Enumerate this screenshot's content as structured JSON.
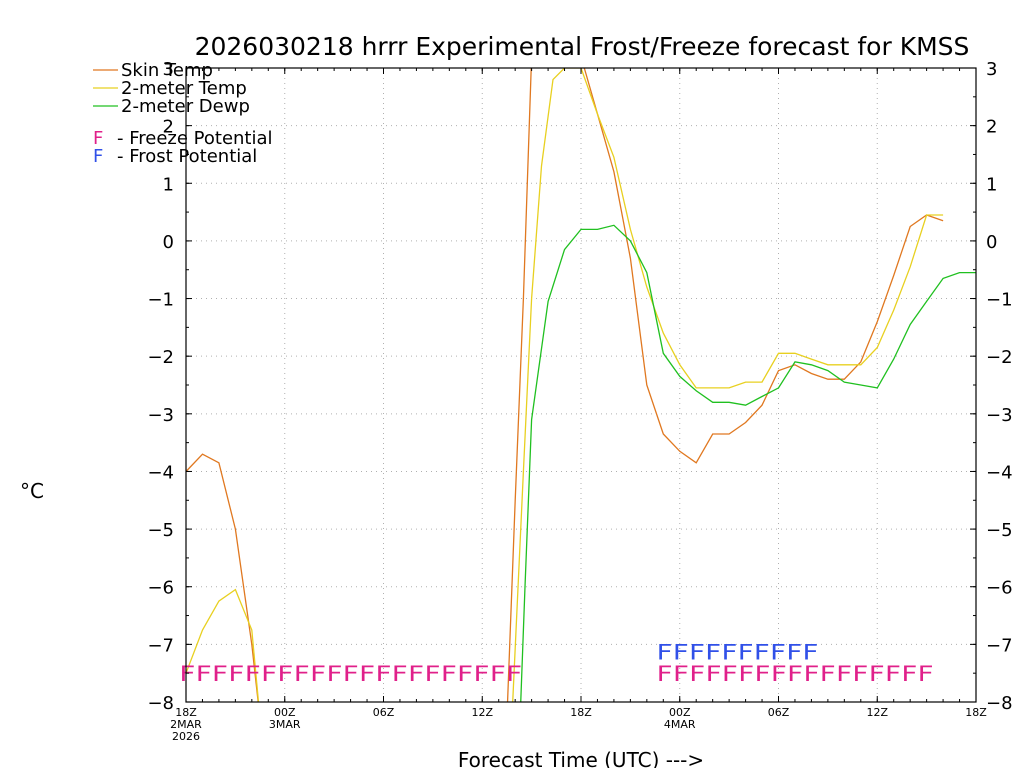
{
  "chart_data": {
    "type": "line",
    "title": "2026030218 hrrr Experimental Frost/Freeze forecast for KMSS",
    "ylabel": "°C",
    "xlabel": "Forecast Time (UTC) --->",
    "ylim": [
      -8,
      3
    ],
    "yticks": [
      3,
      2,
      1,
      0,
      -1,
      -2,
      -3,
      -4,
      -5,
      -6,
      -7,
      -8
    ],
    "xlim": [
      0,
      48
    ],
    "xticks": [
      {
        "h": 0,
        "lines": [
          "18Z",
          "2MAR",
          "2026"
        ]
      },
      {
        "h": 6,
        "lines": [
          "00Z",
          "3MAR"
        ]
      },
      {
        "h": 12,
        "lines": [
          "06Z"
        ]
      },
      {
        "h": 18,
        "lines": [
          "12Z"
        ]
      },
      {
        "h": 24,
        "lines": [
          "18Z"
        ]
      },
      {
        "h": 30,
        "lines": [
          "00Z",
          "4MAR"
        ]
      },
      {
        "h": 36,
        "lines": [
          "06Z"
        ]
      },
      {
        "h": 42,
        "lines": [
          "12Z"
        ]
      },
      {
        "h": 48,
        "lines": [
          "18Z"
        ]
      }
    ],
    "series": [
      {
        "name": "Skin Temp",
        "color": "#e07820",
        "points": [
          [
            0,
            -4.0
          ],
          [
            1,
            -3.7
          ],
          [
            2,
            -3.85
          ],
          [
            3,
            -5.0
          ],
          [
            4,
            -7.0
          ],
          [
            4.5,
            -8.3
          ],
          [
            19.5,
            -8.3
          ],
          [
            20,
            -4.5
          ],
          [
            20.5,
            -1.0
          ],
          [
            21,
            3.2
          ],
          [
            21.5,
            3.2
          ],
          [
            22,
            3.2
          ],
          [
            23,
            3.2
          ],
          [
            24,
            3.2
          ],
          [
            25,
            2.2
          ],
          [
            26,
            1.2
          ],
          [
            27,
            -0.3
          ],
          [
            28,
            -2.5
          ],
          [
            29,
            -3.35
          ],
          [
            30,
            -3.65
          ],
          [
            31,
            -3.85
          ],
          [
            32,
            -3.35
          ],
          [
            33,
            -3.35
          ],
          [
            34,
            -3.15
          ],
          [
            35,
            -2.85
          ],
          [
            36,
            -2.25
          ],
          [
            37,
            -2.15
          ],
          [
            38,
            -2.3
          ],
          [
            39,
            -2.4
          ],
          [
            40,
            -2.4
          ],
          [
            41,
            -2.1
          ],
          [
            42,
            -1.4
          ],
          [
            43,
            -0.6
          ],
          [
            44,
            0.25
          ],
          [
            45,
            0.45
          ],
          [
            46,
            0.35
          ]
        ]
      },
      {
        "name": "2-meter Temp",
        "color": "#e8d020",
        "points": [
          [
            0,
            -7.5
          ],
          [
            1,
            -6.75
          ],
          [
            2,
            -6.25
          ],
          [
            3,
            -6.05
          ],
          [
            4,
            -6.75
          ],
          [
            4.5,
            -8.3
          ],
          [
            19.8,
            -8.3
          ],
          [
            20.5,
            -4.0
          ],
          [
            21,
            -1.0
          ],
          [
            21.6,
            1.3
          ],
          [
            22.3,
            2.8
          ],
          [
            23,
            3.0
          ],
          [
            24,
            3.0
          ],
          [
            25,
            2.2
          ],
          [
            26,
            1.45
          ],
          [
            27,
            0.2
          ],
          [
            28,
            -0.8
          ],
          [
            29,
            -1.6
          ],
          [
            30,
            -2.15
          ],
          [
            31,
            -2.55
          ],
          [
            32,
            -2.55
          ],
          [
            33,
            -2.55
          ],
          [
            34,
            -2.45
          ],
          [
            35,
            -2.45
          ],
          [
            36,
            -1.95
          ],
          [
            37,
            -1.95
          ],
          [
            38,
            -2.05
          ],
          [
            39,
            -2.15
          ],
          [
            40,
            -2.15
          ],
          [
            41,
            -2.15
          ],
          [
            42,
            -1.85
          ],
          [
            43,
            -1.2
          ],
          [
            44,
            -0.45
          ],
          [
            45,
            0.45
          ],
          [
            46,
            0.45
          ]
        ]
      },
      {
        "name": "2-meter Dewp",
        "color": "#20c020",
        "points": [
          [
            20.3,
            -8.3
          ],
          [
            20.6,
            -6.0
          ],
          [
            21,
            -3.1
          ],
          [
            22,
            -1.05
          ],
          [
            23,
            -0.15
          ],
          [
            24,
            0.2
          ],
          [
            25,
            0.2
          ],
          [
            26,
            0.27
          ],
          [
            27,
            0.0
          ],
          [
            28,
            -0.55
          ],
          [
            29,
            -1.95
          ],
          [
            30,
            -2.35
          ],
          [
            31,
            -2.6
          ],
          [
            32,
            -2.8
          ],
          [
            33,
            -2.8
          ],
          [
            34,
            -2.85
          ],
          [
            35,
            -2.7
          ],
          [
            36,
            -2.55
          ],
          [
            37,
            -2.1
          ],
          [
            38,
            -2.15
          ],
          [
            39,
            -2.25
          ],
          [
            40,
            -2.45
          ],
          [
            41,
            -2.5
          ],
          [
            42,
            -2.55
          ],
          [
            43,
            -2.05
          ],
          [
            44,
            -1.45
          ],
          [
            45,
            -1.05
          ],
          [
            46,
            -0.65
          ],
          [
            47,
            -0.55
          ],
          [
            48,
            -0.55
          ]
        ]
      }
    ],
    "legend": [
      "Skin Temp",
      "2-meter Temp",
      "2-meter Dewp"
    ],
    "flag_legend": [
      {
        "letter": "F",
        "text": "- Freeze Potential",
        "color": "#e0208a"
      },
      {
        "letter": "F",
        "text": "- Frost Potential",
        "color": "#3050e8"
      }
    ],
    "flags": {
      "freeze": {
        "color": "#e0208a",
        "y": -7.5,
        "segments": [
          {
            "start": 0,
            "end": 20,
            "text": "FFFFFFFFFFFFFFFFFFFFF"
          },
          {
            "start": 29,
            "end": 45,
            "text": "FFFFFFFFFFFFFFFFF"
          }
        ]
      },
      "frost": {
        "color": "#3050e8",
        "y": -7.12,
        "segments": [
          {
            "start": 29,
            "end": 38,
            "text": "FFFFFFFFFF"
          }
        ]
      }
    }
  }
}
